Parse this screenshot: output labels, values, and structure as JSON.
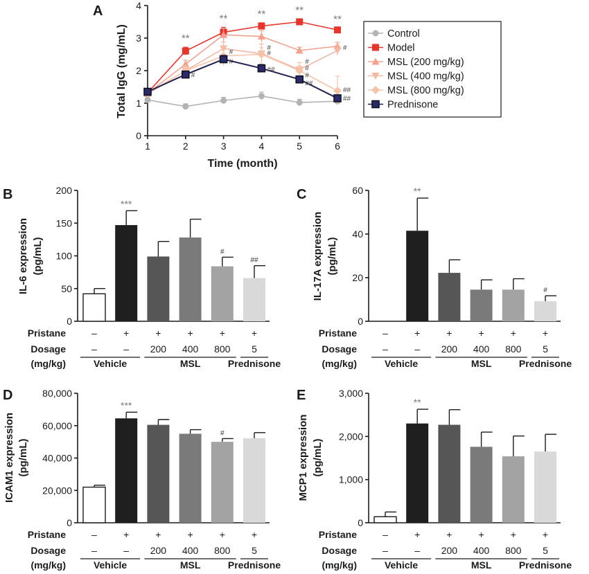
{
  "chart_data": [
    {
      "panel": "A",
      "type": "line",
      "xlabel": "Time (month)",
      "ylabel": "Total IgG (mg/mL)",
      "x": [
        1,
        2,
        3,
        4,
        5,
        6
      ],
      "x_ticks": [
        "1",
        "2",
        "3",
        "4",
        "5",
        "6"
      ],
      "y_ticks": [
        "0",
        "1",
        "2",
        "3",
        "4"
      ],
      "ylim": [
        0,
        4
      ],
      "series": [
        {
          "name": "Control",
          "color": "#b3b3b3",
          "marker": "circle",
          "values": [
            1.1,
            0.9,
            1.08,
            1.22,
            1.02,
            1.06
          ],
          "errors": [
            0.1,
            0.08,
            0.1,
            0.12,
            0.1,
            0.08
          ]
        },
        {
          "name": "Model",
          "color": "#e8342a",
          "marker": "square",
          "values": [
            1.32,
            2.6,
            3.18,
            3.37,
            3.5,
            3.25
          ],
          "errors": [
            0.12,
            0.12,
            0.15,
            0.1,
            0.08,
            0.06
          ]
        },
        {
          "name": "MSL (200 mg/kg)",
          "color": "#f4a08c",
          "marker": "triangle-up",
          "values": [
            1.3,
            2.2,
            3.1,
            3.05,
            2.62,
            2.75
          ],
          "errors": [
            0.1,
            0.12,
            0.2,
            0.18,
            0.1,
            0.12
          ]
        },
        {
          "name": "MSL (400 mg/kg)",
          "color": "#f6b7a5",
          "marker": "triangle-down",
          "values": [
            1.28,
            2.0,
            2.68,
            2.52,
            2.03,
            2.62
          ],
          "errors": [
            0.1,
            0.15,
            0.2,
            0.3,
            0.12,
            0.15
          ]
        },
        {
          "name": "MSL (800 mg/kg)",
          "color": "#f7c3a8",
          "marker": "diamond",
          "values": [
            1.3,
            2.0,
            2.45,
            2.5,
            2.0,
            1.38
          ],
          "errors": [
            0.1,
            0.12,
            0.3,
            0.2,
            0.25,
            0.45
          ]
        },
        {
          "name": "Prednisone",
          "color": "#1f1f4d",
          "marker": "square-outline",
          "values": [
            1.35,
            1.88,
            2.35,
            2.07,
            1.73,
            1.15
          ],
          "errors": [
            0.1,
            0.1,
            0.12,
            0.12,
            0.1,
            0.1
          ]
        }
      ],
      "annotations": [
        {
          "x": 2,
          "text": "**"
        },
        {
          "x": 3,
          "text": "**"
        },
        {
          "x": 4,
          "text": "**"
        },
        {
          "x": 5,
          "text": "**"
        },
        {
          "x": 6,
          "text": "**"
        },
        {
          "x": 2,
          "y": 1.88,
          "text": "#"
        },
        {
          "x": 3,
          "y": 2.6,
          "text": "#"
        },
        {
          "x": 3,
          "y": 2.3,
          "text": "#"
        },
        {
          "x": 4,
          "y": 2.72,
          "text": "#"
        },
        {
          "x": 4,
          "y": 2.55,
          "text": "#"
        },
        {
          "x": 4,
          "y": 2.05,
          "text": "##"
        },
        {
          "x": 5,
          "y": 2.3,
          "text": "#"
        },
        {
          "x": 5,
          "y": 2.1,
          "text": "#"
        },
        {
          "x": 5,
          "y": 1.87,
          "text": "#"
        },
        {
          "x": 5,
          "y": 1.63,
          "text": "##"
        },
        {
          "x": 6,
          "y": 2.72,
          "text": "#"
        },
        {
          "x": 6,
          "y": 1.43,
          "text": "##"
        },
        {
          "x": 6,
          "y": 1.16,
          "text": "##"
        }
      ]
    },
    {
      "panel": "B",
      "type": "bar",
      "ylabel_line1": "IL-6 expression",
      "ylabel_line2": "(pg/mL)",
      "ylim": [
        0,
        200
      ],
      "y_ticks": [
        "0",
        "50",
        "100",
        "150",
        "200"
      ],
      "values": [
        42,
        147,
        99,
        128,
        84,
        66
      ],
      "errors": [
        8,
        22,
        23,
        28,
        14,
        19
      ],
      "sig": [
        "",
        "***",
        "",
        "",
        "#",
        "##"
      ]
    },
    {
      "panel": "C",
      "type": "bar",
      "ylabel_line1": "IL-17A expression",
      "ylabel_line2": "(pg/mL)",
      "ylim": [
        0,
        60
      ],
      "y_ticks": [
        "0",
        "20",
        "40",
        "60"
      ],
      "values": [
        0,
        41.5,
        22.2,
        14.5,
        14.5,
        9.2
      ],
      "errors": [
        0,
        15,
        6,
        4.5,
        5,
        2.5
      ],
      "sig": [
        "",
        "**",
        "",
        "",
        "",
        "#"
      ]
    },
    {
      "panel": "D",
      "type": "bar",
      "ylabel_line1": "ICAM1 expression",
      "ylabel_line2": "(pg/mL)",
      "ylim": [
        0,
        80000
      ],
      "y_ticks": [
        "0",
        "20,000",
        "40,000",
        "60,000",
        "80,000"
      ],
      "values": [
        22000,
        64500,
        60500,
        55000,
        50000,
        52200
      ],
      "errors": [
        1200,
        3800,
        3300,
        2500,
        2000,
        3500
      ],
      "sig": [
        "",
        "***",
        "",
        "",
        "#",
        ""
      ]
    },
    {
      "panel": "E",
      "type": "bar",
      "ylabel_line1": "MCP1 expression",
      "ylabel_line2": "(pg/mL)",
      "ylim": [
        0,
        3000
      ],
      "y_ticks": [
        "0",
        "1,000",
        "2,000",
        "3,000"
      ],
      "values": [
        140,
        2300,
        2270,
        1760,
        1540,
        1650
      ],
      "errors": [
        110,
        330,
        350,
        340,
        470,
        400
      ],
      "sig": [
        "",
        "**",
        "",
        "",
        "",
        ""
      ]
    }
  ],
  "bar_colors": [
    "#ffffff",
    "#1e1e1e",
    "#565656",
    "#7a7a7a",
    "#a3a3a3",
    "#d9d9d9"
  ],
  "table": {
    "row1_label": "Pristane",
    "row2_label": "Dosage",
    "row3_label": "(mg/kg)",
    "pristane": [
      "–",
      "+",
      "+",
      "+",
      "+",
      "+"
    ],
    "dosage": [
      "–",
      "–",
      "200",
      "400",
      "800",
      "5"
    ],
    "groups": [
      {
        "label": "Vehicle",
        "from": 0,
        "to": 1
      },
      {
        "label": "MSL",
        "from": 2,
        "to": 4
      },
      {
        "label": "Prednisone",
        "from": 5,
        "to": 5
      }
    ]
  }
}
